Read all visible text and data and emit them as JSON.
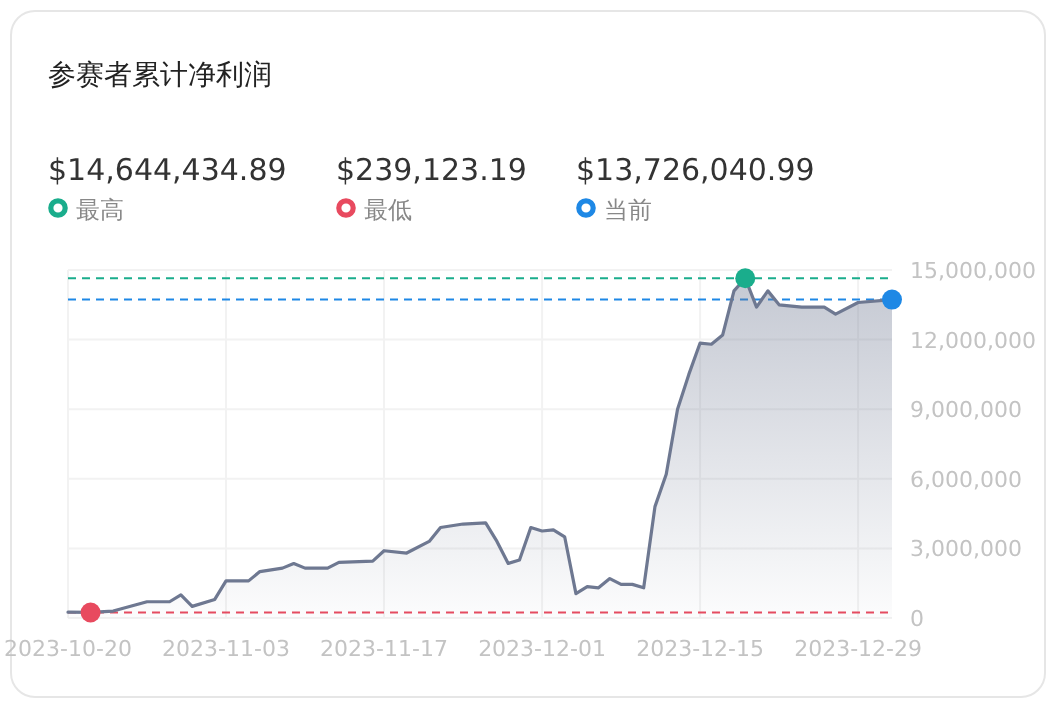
{
  "chart_data": {
    "type": "area",
    "title": "参赛者累计净利润",
    "annotations": [
      "$14,644,434.89",
      "$239,123.19",
      "$13,726,040.99"
    ],
    "xlim": [
      "2023-10-20",
      "2024-01-01"
    ],
    "xticks": [
      "2023-10-20",
      "2023-11-03",
      "2023-11-17",
      "2023-12-01",
      "2023-12-15",
      "2023-12-29"
    ],
    "ylim": [
      0,
      15000000
    ],
    "yticks": [
      {
        "value": 0,
        "label": "0"
      },
      {
        "value": 3000000,
        "label": "3,000,000"
      },
      {
        "value": 6000000,
        "label": "6,000,000"
      },
      {
        "value": 9000000,
        "label": "9,000,000"
      },
      {
        "value": 12000000,
        "label": "12,000,000"
      },
      {
        "value": 15000000,
        "label": "15,000,000"
      }
    ],
    "grid": true,
    "legend": "top left",
    "line_style": "solid",
    "series": [
      {
        "color": "#6e7891",
        "marker": "none",
        "x": [
          "2023-10-20",
          "2023-10-22",
          "2023-10-24",
          "2023-10-27",
          "2023-10-29",
          "2023-10-30",
          "2023-10-31",
          "2023-11-02",
          "2023-11-03",
          "2023-11-05",
          "2023-11-06",
          "2023-11-08",
          "2023-11-09",
          "2023-11-10",
          "2023-11-12",
          "2023-11-13",
          "2023-11-16",
          "2023-11-17",
          "2023-11-19",
          "2023-11-21",
          "2023-11-22",
          "2023-11-24",
          "2023-11-26",
          "2023-11-27",
          "2023-11-28",
          "2023-11-29",
          "2023-11-30",
          "2023-12-01",
          "2023-12-02",
          "2023-12-03",
          "2023-12-04",
          "2023-12-05",
          "2023-12-06",
          "2023-12-07",
          "2023-12-08",
          "2023-12-09",
          "2023-12-10",
          "2023-12-11",
          "2023-12-12",
          "2023-12-13",
          "2023-12-14",
          "2023-12-15",
          "2023-12-16",
          "2023-12-17",
          "2023-12-18",
          "2023-12-19",
          "2023-12-20",
          "2023-12-21",
          "2023-12-22",
          "2023-12-24",
          "2023-12-26",
          "2023-12-27",
          "2023-12-29",
          "2024-01-01"
        ],
        "values": [
          250000,
          239123.19,
          300000,
          700000,
          700000,
          1000000,
          500000,
          800000,
          1600000,
          1600000,
          2000000,
          2150000,
          2350000,
          2150000,
          2150000,
          2400000,
          2450000,
          2900000,
          2800000,
          3300000,
          3900000,
          4050000,
          4100000,
          3300000,
          2350000,
          2500000,
          3900000,
          3750000,
          3800000,
          3500000,
          1050000,
          1350000,
          1300000,
          1700000,
          1450000,
          1450000,
          1300000,
          4800000,
          6200000,
          9000000,
          10500000,
          11850000,
          11800000,
          12200000,
          14100000,
          14644434.89,
          13400000,
          14100000,
          13500000,
          13400000,
          13400000,
          13100000,
          13600000,
          13726040.99
        ]
      },
      {
        "type": "scatter",
        "marker": "circle",
        "x": [
          "2023-10-22",
          "2023-12-19",
          "2024-01-01"
        ],
        "values": [
          239123.19,
          14644434.89,
          13726040.99
        ],
        "colors": [
          "#e84a5f",
          "#1aad8c",
          "#1e88e5"
        ]
      }
    ],
    "ref_lines": [
      {
        "axis": "y",
        "value": 14644434.89,
        "label": "最高",
        "color": "#1aad8c",
        "line_style": "dashed"
      },
      {
        "axis": "y",
        "value": 239123.19,
        "label": "最低",
        "color": "#e84a5f",
        "line_style": "dashed"
      },
      {
        "axis": "y",
        "value": 13726040.99,
        "label": "当前",
        "color": "#1e88e5",
        "line_style": "dashed"
      }
    ]
  }
}
